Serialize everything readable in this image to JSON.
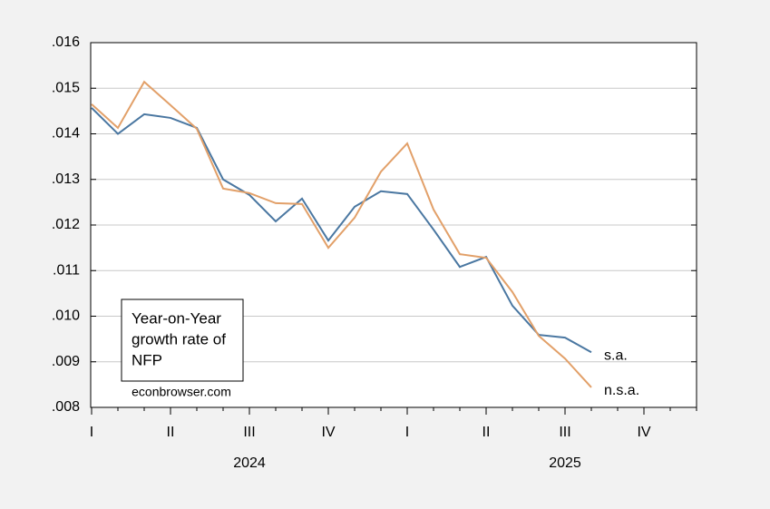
{
  "chart_data": {
    "type": "line",
    "annotation": [
      "Year-on-Year",
      "growth rate of",
      "NFP"
    ],
    "source": "econbrowser.com",
    "categories": [
      "I",
      null,
      null,
      "II",
      null,
      null,
      "III",
      null,
      null,
      "IV",
      null,
      null,
      "I",
      null,
      null,
      "II",
      null,
      null,
      "III",
      null,
      null,
      "IV",
      null,
      null
    ],
    "years": [
      "2024",
      "2025"
    ],
    "series": [
      {
        "name": "s.a.",
        "color": "#4a77a1",
        "values": [
          0.01457,
          0.014,
          0.01443,
          0.01435,
          0.01413,
          0.013,
          0.01266,
          0.01208,
          0.01258,
          0.01166,
          0.0124,
          0.01274,
          0.01268,
          0.0119,
          0.01108,
          0.0113,
          0.01023,
          0.00959,
          0.00953,
          0.00921,
          null,
          null,
          null,
          null
        ]
      },
      {
        "name": "n.s.a.",
        "color": "#e2a069",
        "values": [
          0.01465,
          0.01413,
          0.01514,
          0.01463,
          0.01411,
          0.0128,
          0.0127,
          0.01248,
          0.01246,
          0.0115,
          0.01216,
          0.01317,
          0.01379,
          0.01234,
          0.01136,
          0.01128,
          0.01053,
          0.00957,
          0.00907,
          0.00844,
          null,
          null,
          null,
          null
        ]
      }
    ],
    "ylim": [
      0.008,
      0.016
    ],
    "yticks": [
      {
        "value": 0.008,
        "label": ".008"
      },
      {
        "value": 0.009,
        "label": ".009"
      },
      {
        "value": 0.01,
        "label": ".010"
      },
      {
        "value": 0.011,
        "label": ".011"
      },
      {
        "value": 0.012,
        "label": ".012"
      },
      {
        "value": 0.013,
        "label": ".013"
      },
      {
        "value": 0.014,
        "label": ".014"
      },
      {
        "value": 0.015,
        "label": ".015"
      },
      {
        "value": 0.016,
        "label": ".016"
      }
    ],
    "grid": true
  }
}
